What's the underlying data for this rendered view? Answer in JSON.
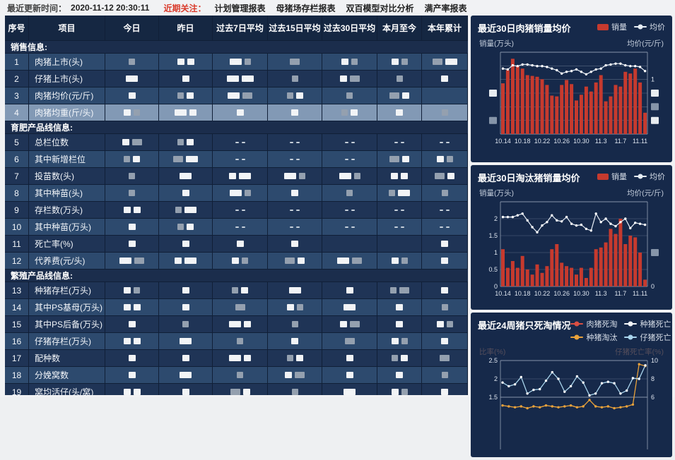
{
  "topbar": {
    "update_label": "最近更新时间：",
    "update_time": "2020-11-12 20:30:11",
    "focus_label": "近期关注：",
    "menu": [
      "计划管理报表",
      "母猪场存栏报表",
      "双百模型对比分析",
      "满产率报表"
    ]
  },
  "table": {
    "columns": [
      "序号",
      "项目",
      "今日",
      "昨日",
      "过去7日平均",
      "过去15日平均",
      "过去30日平均",
      "本月至今",
      "本年累计"
    ],
    "redaction_legend": "w/W = 白色打码块, g/G = 灰色打码块, d = 双短横线, 空串 = 空单元格",
    "sections": [
      {
        "title": "销售信息:",
        "rows": [
          {
            "no": "1",
            "label": "肉猪上市(头)",
            "cells": [
              "g",
              "w w",
              "W g",
              "G",
              "w g",
              "w g",
              "G W"
            ]
          },
          {
            "no": "2",
            "label": "仔猪上市(头)",
            "cells": [
              "W",
              "w",
              "W W",
              "g",
              "w G",
              "g",
              "w"
            ]
          },
          {
            "no": "3",
            "label": "肉猪均价(元/斤)",
            "cells": [
              "w",
              "g w",
              "W G",
              "g w",
              "g",
              "G w",
              ""
            ]
          },
          {
            "no": "4",
            "label": "肉猪均重(斤/头)",
            "cells": [
              "w g",
              "W w",
              "w",
              "w",
              "g w",
              "w",
              "g"
            ],
            "highlight": true
          }
        ]
      },
      {
        "title": "育肥产品线信息:",
        "rows": [
          {
            "no": "5",
            "label": "总栏位数",
            "cells": [
              "w G",
              "g w",
              "d",
              "d",
              "d",
              "d",
              "d"
            ]
          },
          {
            "no": "6",
            "label": "其中新增栏位",
            "cells": [
              "g w",
              "G W",
              "d",
              "d",
              "d",
              "G w",
              "w g"
            ]
          },
          {
            "no": "7",
            "label": "投苗数(头)",
            "cells": [
              "g",
              "W",
              "w W",
              "W g",
              "W g",
              "w w",
              "G w"
            ]
          },
          {
            "no": "8",
            "label": "其中种苗(头)",
            "cells": [
              "g",
              "w",
              "W g",
              "w",
              "g",
              "g W",
              "g"
            ]
          },
          {
            "no": "9",
            "label": "存栏数(万头)",
            "cells": [
              "w w",
              "g W",
              "d",
              "d",
              "d",
              "d",
              "d"
            ]
          },
          {
            "no": "10",
            "label": "其中种苗(万头)",
            "cells": [
              "w",
              "g w",
              "d",
              "d",
              "d",
              "d",
              "d"
            ]
          },
          {
            "no": "11",
            "label": "死亡率(%)",
            "cells": [
              "w",
              "w",
              "w",
              "w",
              "",
              "",
              "w"
            ]
          },
          {
            "no": "12",
            "label": "代养费(元/头)",
            "cells": [
              "W G",
              "w W",
              "w g",
              "G w",
              "W G",
              "w g",
              "w"
            ]
          }
        ]
      },
      {
        "title": "繁殖产品线信息:",
        "rows": [
          {
            "no": "13",
            "label": "种猪存栏(万头)",
            "cells": [
              "w g",
              "w",
              "g w",
              "W",
              "w",
              "g G",
              "w"
            ]
          },
          {
            "no": "14",
            "label": "其中PS基母(万头)",
            "cells": [
              "w w",
              "w",
              "G",
              "w g",
              "W",
              "w",
              "g"
            ]
          },
          {
            "no": "15",
            "label": "其中PS后备(万头)",
            "cells": [
              "w",
              "g",
              "W w",
              "g",
              "w G",
              "w",
              "w g"
            ]
          },
          {
            "no": "16",
            "label": "仔猪存栏(万头)",
            "cells": [
              "w w",
              "W",
              "g",
              "w",
              "G",
              "w g",
              "w"
            ]
          },
          {
            "no": "17",
            "label": "配种数",
            "cells": [
              "w",
              "w",
              "W w",
              "g w",
              "w",
              "g w",
              "G"
            ]
          },
          {
            "no": "18",
            "label": "分娩窝数",
            "cells": [
              "w",
              "W",
              "g",
              "w G",
              "w",
              "w",
              "g"
            ]
          },
          {
            "no": "19",
            "label": "窝均活仔(头/窝)",
            "cells": [
              "w w",
              "w",
              "G w",
              "g",
              "W",
              "w g",
              "w"
            ]
          }
        ]
      }
    ]
  },
  "chart_data": [
    {
      "type": "bar+line",
      "title": "最近30日肉猪销量均价",
      "ylabel_left": "销量(万头)",
      "ylabel_right": "均价(元/斤)",
      "x_tick_labels": [
        "10.14",
        "10.18",
        "10.22",
        "10.26",
        "10.30",
        "11.3",
        "11.7",
        "11.11"
      ],
      "n_points": 30,
      "values_normalized": true,
      "y_left_ticks": [
        {
          "block": "light",
          "row": 3
        },
        {
          "block": "dark",
          "row": 5
        }
      ],
      "y_right_ticks": [
        {
          "text": "1",
          "row": 2
        },
        {
          "block": "light",
          "row": 3
        },
        {
          "block": "dark",
          "row": 4
        },
        {
          "block": "light",
          "row": 5
        }
      ],
      "series": [
        {
          "name": "销量",
          "type": "bar",
          "axis": "left",
          "color": "#c63a2e",
          "values": [
            0.62,
            0.78,
            0.92,
            0.83,
            0.8,
            0.72,
            0.71,
            0.7,
            0.67,
            0.6,
            0.47,
            0.46,
            0.6,
            0.66,
            0.61,
            0.41,
            0.48,
            0.58,
            0.52,
            0.63,
            0.72,
            0.4,
            0.46,
            0.6,
            0.58,
            0.76,
            0.74,
            0.8,
            0.63,
            0.26
          ]
        },
        {
          "name": "均价",
          "type": "line",
          "axis": "right",
          "color": "#e6edf5",
          "values": [
            0.8,
            0.79,
            0.84,
            0.83,
            0.85,
            0.85,
            0.84,
            0.83,
            0.83,
            0.82,
            0.8,
            0.78,
            0.74,
            0.76,
            0.77,
            0.79,
            0.76,
            0.73,
            0.76,
            0.79,
            0.8,
            0.84,
            0.85,
            0.86,
            0.86,
            0.84,
            0.83,
            0.83,
            0.82,
            0.77
          ]
        }
      ]
    },
    {
      "type": "bar+line",
      "title": "最近30日淘汰猪销量均价",
      "ylabel_left": "销量(万头)",
      "ylabel_right": "均价(元/斤)",
      "x_tick_labels": [
        "10.14",
        "10.18",
        "10.22",
        "10.26",
        "10.30",
        "11.3",
        "11.7",
        "11.11"
      ],
      "n_points": 30,
      "ylim_left": [
        0,
        2.5
      ],
      "y_left_ticks": [
        {
          "text": "2",
          "row": 1
        },
        {
          "text": "1.5",
          "row": 2
        },
        {
          "text": "1",
          "row": 3
        },
        {
          "text": "0.5",
          "row": 4
        },
        {
          "text": "0",
          "row": 5
        }
      ],
      "y_right_ticks": [
        {
          "block": "dark",
          "row": 3
        },
        {
          "text": "0",
          "row": 5
        }
      ],
      "series": [
        {
          "name": "销量",
          "type": "bar",
          "axis": "left",
          "color": "#c63a2e",
          "values": [
            1.1,
            0.55,
            0.75,
            0.55,
            0.9,
            0.5,
            0.35,
            0.65,
            0.4,
            0.6,
            1.1,
            1.25,
            0.7,
            0.6,
            0.55,
            0.35,
            0.55,
            0.25,
            0.55,
            1.1,
            1.15,
            1.3,
            1.7,
            1.55,
            2.0,
            1.25,
            1.5,
            1.45,
            1.0,
            0.2
          ]
        },
        {
          "name": "均价",
          "type": "line",
          "axis": "right",
          "color": "#e6edf5",
          "values": [
            2.05,
            2.05,
            2.05,
            2.1,
            2.15,
            1.95,
            1.75,
            1.6,
            1.8,
            1.9,
            2.1,
            1.95,
            1.92,
            2.05,
            1.85,
            1.8,
            1.82,
            1.7,
            1.65,
            2.15,
            1.9,
            2.0,
            1.85,
            1.78,
            1.9,
            2.0,
            1.72,
            1.88,
            1.85,
            1.82
          ]
        }
      ]
    },
    {
      "type": "line",
      "title": "最近24周猪只死淘情况",
      "ylabel_left": "比率(%)",
      "ylabel_right": "仔猪死亡率(%)",
      "n_points": 24,
      "ylim_left_visible": [
        1.5,
        2.5
      ],
      "ylim_right_visible": [
        6,
        10
      ],
      "y_left_ticks": [
        {
          "text": "2.5",
          "row": 0
        },
        {
          "text": "2",
          "row": 1
        },
        {
          "text": "1.5",
          "row": 2
        }
      ],
      "y_right_ticks": [
        {
          "text": "10",
          "row": 0
        },
        {
          "text": "8",
          "row": 1
        },
        {
          "text": "6",
          "row": 2
        }
      ],
      "series": [
        {
          "name": "肉猪死淘",
          "type": "line",
          "axis": "left",
          "color": "#d94f43",
          "values": []
        },
        {
          "name": "种猪死亡",
          "type": "line",
          "axis": "left",
          "color": "#f2f5f8",
          "values": []
        },
        {
          "name": "种猪淘汰",
          "type": "line",
          "axis": "right",
          "color": "#e9a23b",
          "values": [
            5.1,
            5.0,
            4.9,
            5.0,
            4.8,
            5.0,
            4.9,
            5.1,
            5.0,
            4.9,
            5.0,
            5.1,
            4.9,
            5.0,
            5.7,
            5.0,
            4.9,
            5.0,
            4.8,
            4.9,
            5.0,
            5.2,
            9.6,
            9.4
          ]
        },
        {
          "name": "仔猪死亡",
          "type": "line",
          "axis": "left",
          "color": "#a8d4ec",
          "values": [
            1.9,
            1.8,
            1.85,
            2.05,
            1.6,
            1.7,
            1.72,
            1.95,
            2.18,
            2.0,
            1.65,
            1.8,
            2.07,
            1.9,
            1.55,
            1.6,
            1.88,
            1.92,
            1.88,
            1.6,
            1.68,
            2.02,
            2.0,
            2.37
          ]
        }
      ]
    }
  ]
}
